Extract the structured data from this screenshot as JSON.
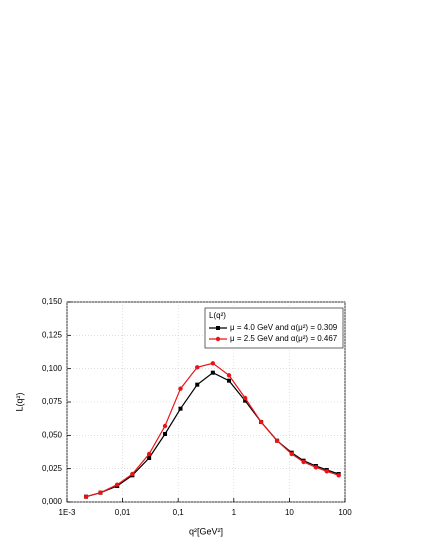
{
  "chart_data": {
    "type": "line",
    "xlabel": "q²[GeV²]",
    "ylabel": "L(q²)",
    "legend_title": "L(q²)",
    "legend": "upper right",
    "grid": true,
    "xscale": "log",
    "xlim": [
      0.001,
      100
    ],
    "ylim": [
      0,
      0.15
    ],
    "xticks": [
      {
        "value": 0.001,
        "label": "1E-3"
      },
      {
        "value": 0.01,
        "label": "0,01"
      },
      {
        "value": 0.1,
        "label": "0,1"
      },
      1,
      10,
      100
    ],
    "yticks": [
      {
        "value": 0,
        "label": "0,000"
      },
      {
        "value": 0.025,
        "label": "0,025"
      },
      {
        "value": 0.05,
        "label": "0,050"
      },
      {
        "value": 0.075,
        "label": "0,075"
      },
      {
        "value": 0.1,
        "label": "0,100"
      },
      {
        "value": 0.125,
        "label": "0,125"
      },
      {
        "value": 0.15,
        "label": "0,150"
      }
    ],
    "x": [
      0.0022,
      0.004,
      0.008,
      0.015,
      0.03,
      0.058,
      0.11,
      0.22,
      0.42,
      0.82,
      1.6,
      3.1,
      6,
      11,
      18,
      30,
      47,
      77
    ],
    "series": [
      {
        "name": "μ = 4.0 GeV and α(μ²) = 0.309",
        "color": "#000000",
        "marker": "square",
        "values": [
          0.004,
          0.007,
          0.012,
          0.02,
          0.033,
          0.051,
          0.07,
          0.088,
          0.097,
          0.091,
          0.076,
          0.06,
          0.046,
          0.037,
          0.031,
          0.027,
          0.024,
          0.021
        ]
      },
      {
        "name": "μ = 2.5 GeV and α(μ²) = 0.467",
        "color": "#e8141a",
        "marker": "circle",
        "values": [
          0.004,
          0.007,
          0.013,
          0.021,
          0.036,
          0.057,
          0.085,
          0.101,
          0.104,
          0.095,
          0.078,
          0.06,
          0.046,
          0.036,
          0.03,
          0.026,
          0.023,
          0.02
        ]
      }
    ]
  }
}
